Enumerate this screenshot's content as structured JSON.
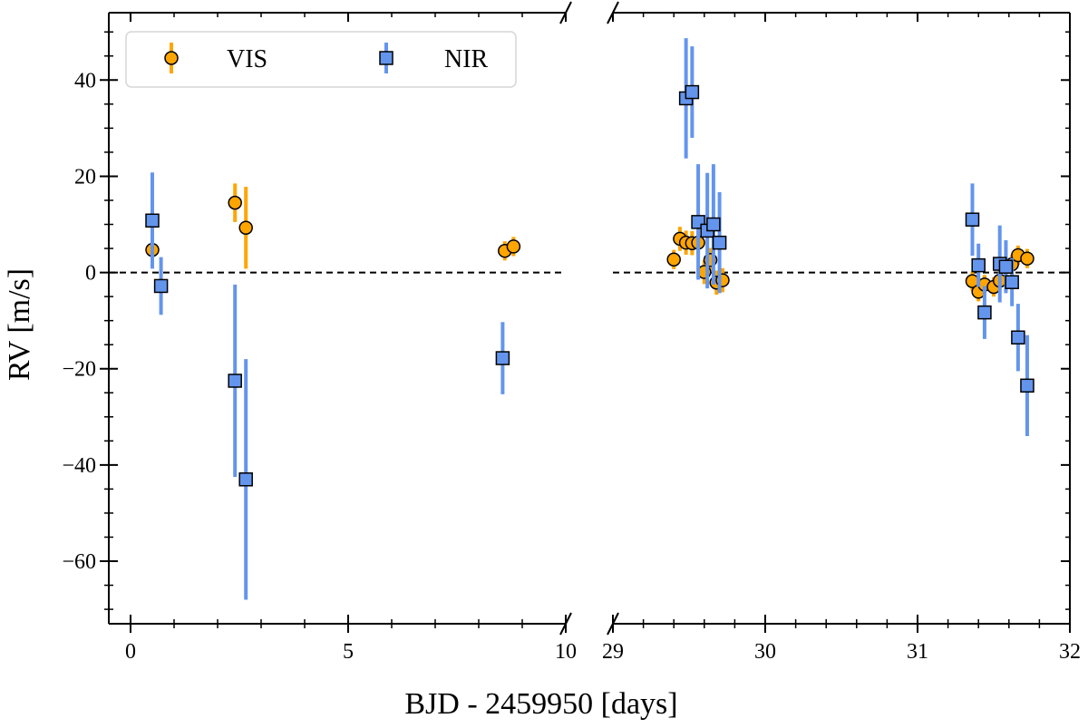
{
  "chart_data": {
    "type": "scatter",
    "subtype": "errorbar, broken x-axis",
    "title": "",
    "xlabel": "BJD - 2459950 [days]",
    "ylabel": "RV [m/s]",
    "ylim": [
      -73,
      54
    ],
    "y_ticks": [
      40,
      20,
      0,
      -20,
      -40,
      -60
    ],
    "y_tick_labels": [
      "40",
      "20",
      "0",
      "−20",
      "−40",
      "−60"
    ],
    "y_minor_step": 5,
    "reference_line": {
      "y": 0,
      "style": "dashed",
      "color": "#000000"
    },
    "panels": [
      {
        "xlim": [
          -0.5,
          10
        ],
        "x_ticks": [
          0,
          5,
          10
        ],
        "x_tick_labels": [
          "0",
          "5",
          "10"
        ],
        "x_minor_step": 1
      },
      {
        "xlim": [
          29,
          32
        ],
        "x_ticks": [
          29,
          30,
          31,
          32
        ],
        "x_tick_labels": [
          "29",
          "30",
          "31",
          "32"
        ],
        "x_minor_step": 0.2
      }
    ],
    "legend": {
      "position": "top-left",
      "entries": [
        "VIS",
        "NIR"
      ]
    },
    "series": [
      {
        "name": "VIS",
        "marker": "circle",
        "color": "#FFA500",
        "edge_color": "#000000",
        "points": [
          {
            "x": 0.5,
            "y": 4.7,
            "err": 3.0
          },
          {
            "x": 2.4,
            "y": 14.5,
            "err": 4.0
          },
          {
            "x": 2.65,
            "y": 9.3,
            "err": 8.5
          },
          {
            "x": 8.6,
            "y": 4.5,
            "err": 2.0
          },
          {
            "x": 8.8,
            "y": 5.4,
            "err": 2.0
          },
          {
            "x": 29.4,
            "y": 2.7,
            "err": 2.0
          },
          {
            "x": 29.44,
            "y": 7.0,
            "err": 2.5
          },
          {
            "x": 29.48,
            "y": 6.2,
            "err": 2.5
          },
          {
            "x": 29.52,
            "y": 6.1,
            "err": 2.5
          },
          {
            "x": 29.56,
            "y": 6.2,
            "err": 2.5
          },
          {
            "x": 29.6,
            "y": 0.1,
            "err": 2.5
          },
          {
            "x": 29.64,
            "y": 2.6,
            "err": 2.5
          },
          {
            "x": 29.68,
            "y": -2.1,
            "err": 2.5
          },
          {
            "x": 29.72,
            "y": -1.6,
            "err": 2.5
          },
          {
            "x": 31.36,
            "y": -1.8,
            "err": 2.0
          },
          {
            "x": 31.4,
            "y": -4.0,
            "err": 2.0
          },
          {
            "x": 31.44,
            "y": -2.5,
            "err": 2.0
          },
          {
            "x": 31.5,
            "y": -3.0,
            "err": 2.0
          },
          {
            "x": 31.54,
            "y": -1.7,
            "err": 2.0
          },
          {
            "x": 31.62,
            "y": 1.7,
            "err": 2.0
          },
          {
            "x": 31.66,
            "y": 3.6,
            "err": 2.0
          },
          {
            "x": 31.72,
            "y": 2.9,
            "err": 2.0
          }
        ]
      },
      {
        "name": "NIR",
        "marker": "square",
        "color": "#6495ED",
        "edge_color": "#000000",
        "points": [
          {
            "x": 0.5,
            "y": 10.8,
            "err": 10.0
          },
          {
            "x": 0.7,
            "y": -2.8,
            "err": 6.0
          },
          {
            "x": 2.4,
            "y": -22.5,
            "err": 20.0
          },
          {
            "x": 2.65,
            "y": -43.0,
            "err": 25.0
          },
          {
            "x": 8.55,
            "y": -17.8,
            "err": 7.5
          },
          {
            "x": 29.48,
            "y": 36.2,
            "err": 12.5
          },
          {
            "x": 29.52,
            "y": 37.5,
            "err": 9.5
          },
          {
            "x": 29.56,
            "y": 10.5,
            "err": 12.0
          },
          {
            "x": 29.62,
            "y": 8.7,
            "err": 12.0
          },
          {
            "x": 29.66,
            "y": 10.0,
            "err": 12.5
          },
          {
            "x": 29.7,
            "y": 6.2,
            "err": 10.5
          },
          {
            "x": 31.36,
            "y": 11.0,
            "err": 7.5
          },
          {
            "x": 31.4,
            "y": 1.5,
            "err": 4.5
          },
          {
            "x": 31.44,
            "y": -8.3,
            "err": 5.5
          },
          {
            "x": 31.54,
            "y": 1.8,
            "err": 8.0
          },
          {
            "x": 31.58,
            "y": 1.2,
            "err": 5.5
          },
          {
            "x": 31.62,
            "y": -2.0,
            "err": 5.0
          },
          {
            "x": 31.66,
            "y": -13.5,
            "err": 7.0
          },
          {
            "x": 31.72,
            "y": -23.5,
            "err": 10.5
          }
        ]
      }
    ]
  }
}
